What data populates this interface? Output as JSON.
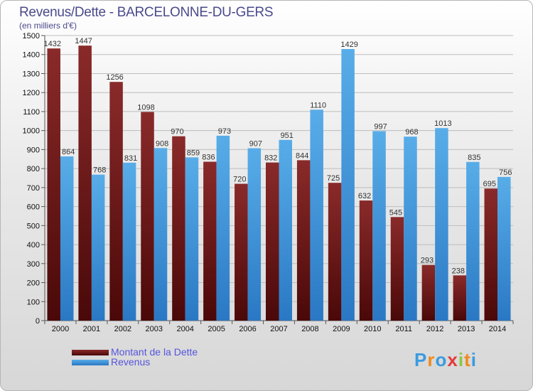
{
  "chart_data": {
    "type": "bar",
    "title": "Revenus/Dette - BARCELONNE-DU-GERS",
    "subtitle": "(en milliers d'€)",
    "categories": [
      "2000",
      "2001",
      "2002",
      "2003",
      "2004",
      "2005",
      "2006",
      "2007",
      "2008",
      "2009",
      "2010",
      "2011",
      "2012",
      "2013",
      "2014"
    ],
    "series": [
      {
        "name": "Montant de la Dette",
        "color": "#7a1c1c",
        "values": [
          1432,
          1447,
          1256,
          1098,
          970,
          836,
          720,
          832,
          844,
          725,
          632,
          545,
          293,
          238,
          695
        ]
      },
      {
        "name": "Revenus",
        "color": "#4a9fe0",
        "values": [
          864,
          768,
          831,
          908,
          859,
          973,
          907,
          951,
          1110,
          1429,
          997,
          968,
          1013,
          835,
          756
        ]
      }
    ],
    "ylim": [
      0,
      1500
    ],
    "yticks": [
      0,
      100,
      200,
      300,
      400,
      500,
      600,
      700,
      800,
      900,
      1000,
      1100,
      1200,
      1300,
      1400,
      1500
    ],
    "grid": true,
    "legend_position": "bottom-left"
  },
  "logo": {
    "letters": [
      "P",
      "r",
      "o",
      "x",
      "i",
      "t",
      "i"
    ],
    "colors": [
      "#3a9be0",
      "#f08a1c",
      "#3a9be0",
      "#e23b3b",
      "#8cc63f",
      "#f08a1c",
      "#3a9be0"
    ]
  }
}
